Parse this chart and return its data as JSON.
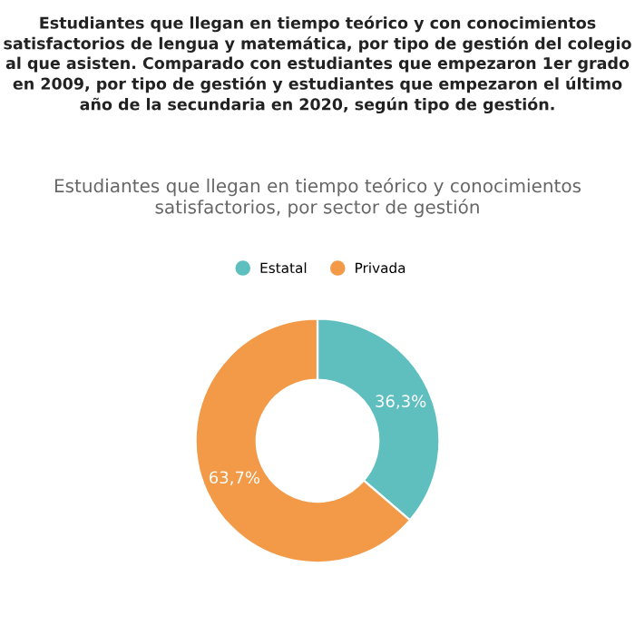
{
  "chart_data": {
    "type": "donut",
    "title": "Estudiantes que llegan en tiempo teórico y con conocimientos satisfactorios de lengua y matemática, por tipo de gestión del colegio al que asisten. Comparado con estudiantes que empezaron 1er grado en 2009, por tipo de gestión y estudiantes que empezaron el último año de la secundaria en 2020, según tipo de gestión.",
    "subtitle": "Estudiantes que llegan en tiempo teórico y conocimientos satisfactorios, por sector de gestión",
    "categories": [
      "Estatal",
      "Privada"
    ],
    "values": [
      36.3,
      63.7
    ],
    "colors": [
      "#5fbfbf",
      "#f29a48"
    ],
    "value_labels": [
      "36,3%",
      "63,7%"
    ],
    "legend": "top"
  }
}
